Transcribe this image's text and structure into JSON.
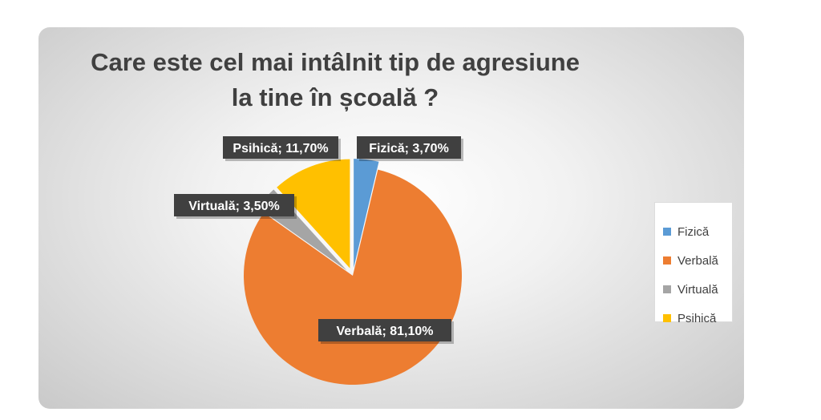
{
  "title": {
    "line1": "Care este cel mai intâlnit tip de agresiune",
    "line2": "la tine în școală ?"
  },
  "chart_data": {
    "type": "pie",
    "categories": [
      "Fizică",
      "Verbală",
      "Virtuală",
      "Psihică"
    ],
    "values": [
      3.7,
      81.1,
      3.5,
      11.7
    ],
    "data_labels": [
      "Fizică; 3,70%",
      "Verbală; 81,10%",
      "Virtuală; 3,50%",
      "Psihică; 11,70%"
    ],
    "colors": [
      "#5b9bd5",
      "#ed7d31",
      "#a5a5a5",
      "#ffc000"
    ],
    "exploded": true,
    "legend_position": "right"
  }
}
